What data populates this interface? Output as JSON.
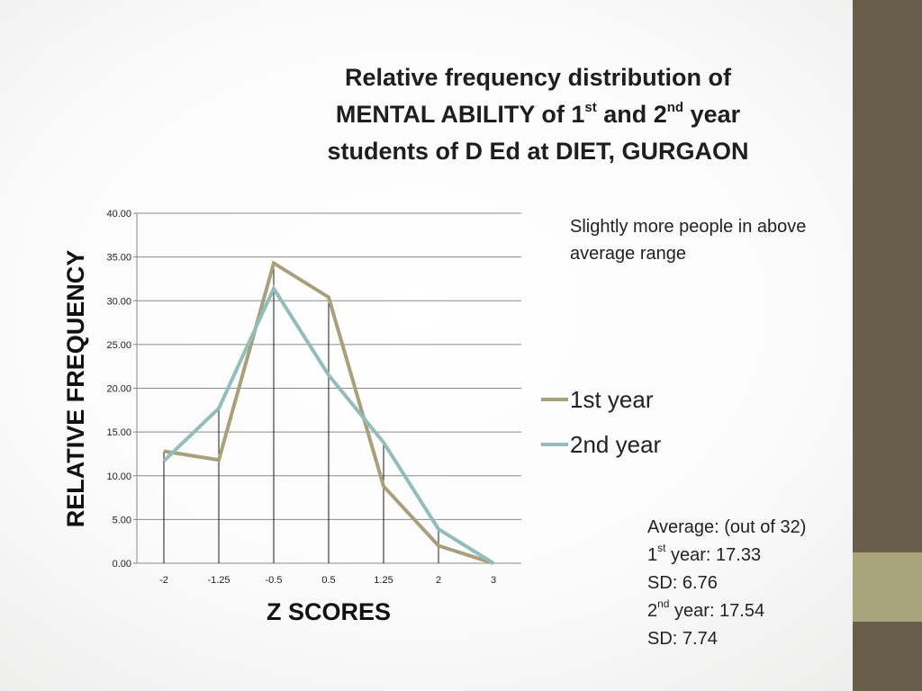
{
  "title": {
    "line1": "Relative frequency distribution of",
    "line2_pre": "MENTAL ABILITY of 1",
    "line2_sup1": "st",
    "line2_mid": " and 2",
    "line2_sup2": "nd",
    "line2_post": " year",
    "line3": "students of D Ed at DIET, GURGAON"
  },
  "note": "Slightly more people in above average range",
  "stats": {
    "line1": "Average: (out of 32)",
    "y1_pre": "1",
    "y1_sup": "st",
    "y1_post": " year: 17.33",
    "sd1": "SD: 6.76",
    "y2_pre": "2",
    "y2_sup": "nd",
    "y2_post": " year: 17.54",
    "sd2": "SD: 7.74"
  },
  "chart_data": {
    "type": "line",
    "xlabel": "Z SCORES",
    "ylabel": "RELATIVE FREQUENCY",
    "categories": [
      "-2",
      "-1.25",
      "-0.5",
      "0.5",
      "1.25",
      "2",
      "3"
    ],
    "ylim": [
      0,
      40
    ],
    "yticks": [
      "0.00",
      "5.00",
      "10.00",
      "15.00",
      "20.00",
      "25.00",
      "30.00",
      "35.00",
      "40.00"
    ],
    "grid": true,
    "legend_position": "right",
    "series": [
      {
        "name": "1st year",
        "color": "#a8a07a",
        "values": [
          12.8,
          11.8,
          34.3,
          30.4,
          8.8,
          2.0,
          0.0
        ]
      },
      {
        "name": "2nd year",
        "color": "#93bcbd",
        "values": [
          11.7,
          17.7,
          31.4,
          21.5,
          13.8,
          3.9,
          0.0
        ]
      }
    ]
  }
}
